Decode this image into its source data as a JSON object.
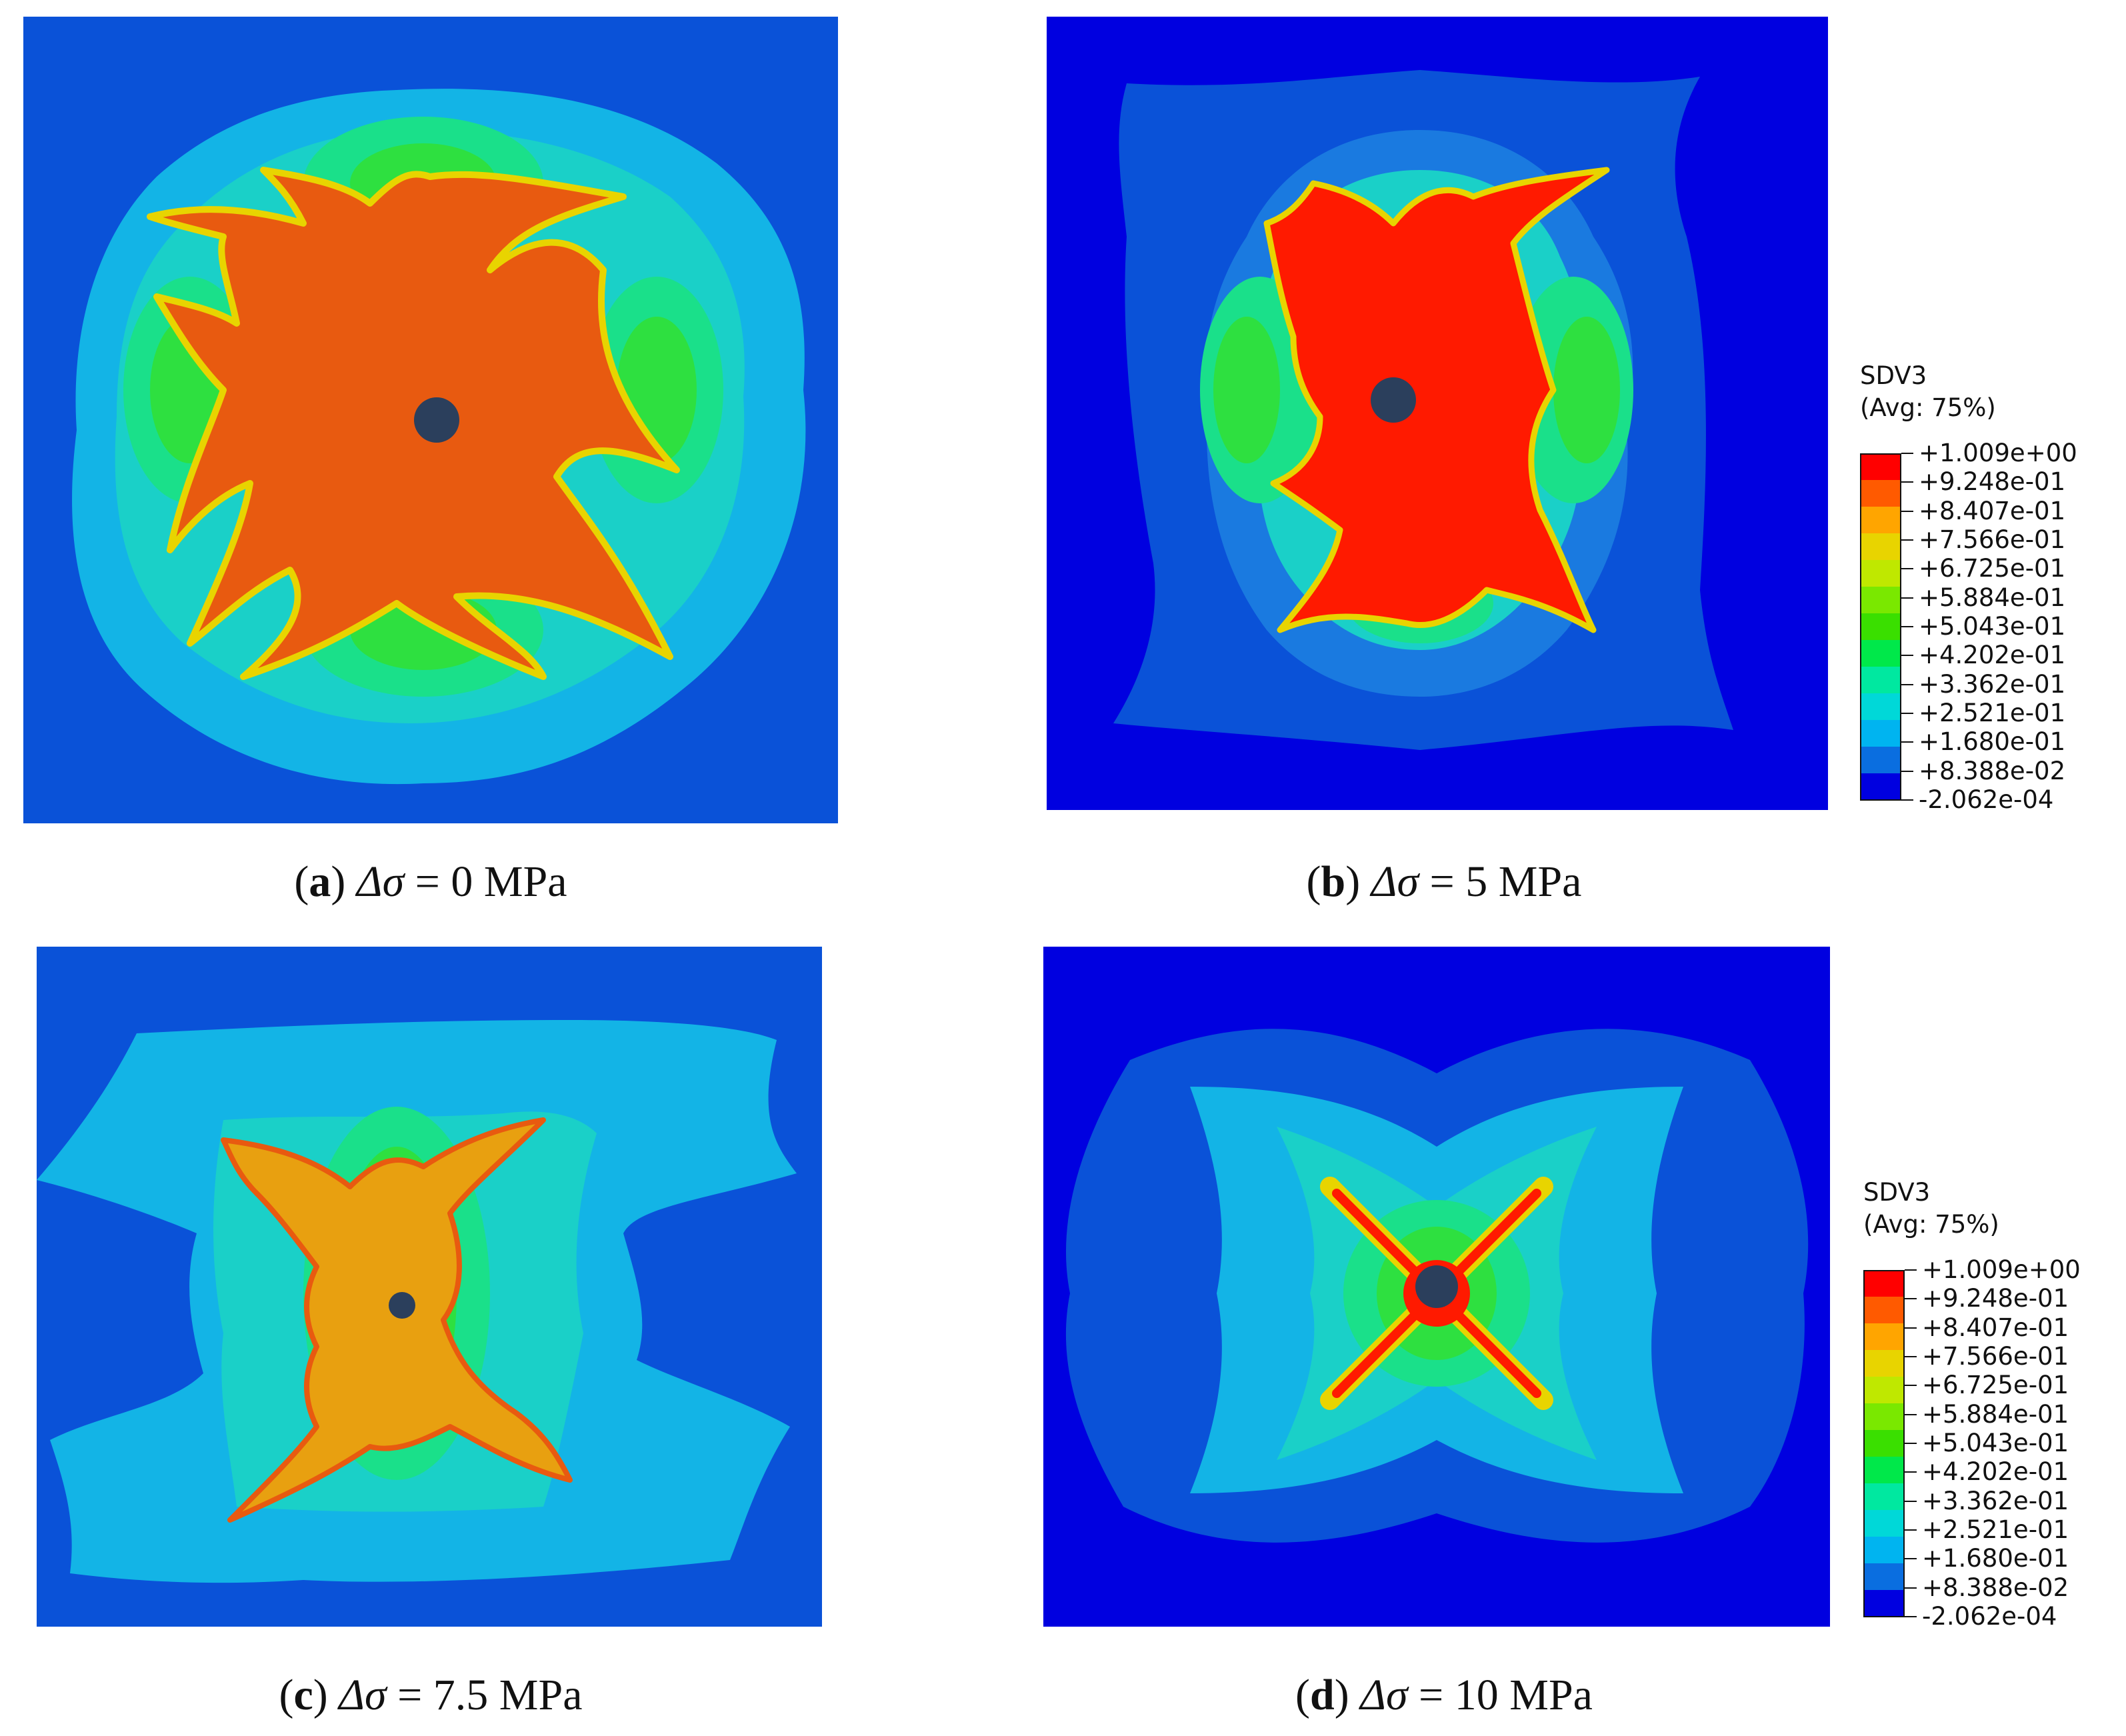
{
  "panels": [
    {
      "id": "a",
      "letter": "a",
      "delta_value": "0"
    },
    {
      "id": "b",
      "letter": "b",
      "delta_value": "5"
    },
    {
      "id": "c",
      "letter": "c",
      "delta_value": "7.5"
    },
    {
      "id": "d",
      "letter": "d",
      "delta_value": "10"
    }
  ],
  "caption_symbol": "Δσ",
  "caption_unit": "MPa",
  "legend": {
    "title": "SDV3",
    "subtitle": "(Avg: 75%)",
    "labels": [
      "+1.009e+00",
      "+9.248e-01",
      "+8.407e-01",
      "+7.566e-01",
      "+6.725e-01",
      "+5.884e-01",
      "+5.043e-01",
      "+4.202e-01",
      "+3.362e-01",
      "+2.521e-01",
      "+1.680e-01",
      "+8.388e-02",
      "-2.062e-04"
    ],
    "colors": [
      "#ff0000",
      "#ff5a00",
      "#ffa500",
      "#e8d400",
      "#bfe800",
      "#7ae800",
      "#3adf00",
      "#00e84a",
      "#00e8a0",
      "#00d8d8",
      "#00b4f0",
      "#0a6ee0",
      "#0000e0"
    ]
  },
  "colors": {
    "deep_blue": "#0000e0",
    "blue": "#0a52d8",
    "mid_blue": "#1a7ae0",
    "cyan_blue": "#13b4e6",
    "cyan": "#1ad0c8",
    "teal_green": "#1ae08a",
    "green": "#2ee040",
    "orange_red": "#e85a10",
    "red": "#ff1a00",
    "orange": "#e8a010",
    "hole": "#2b3f5c"
  }
}
